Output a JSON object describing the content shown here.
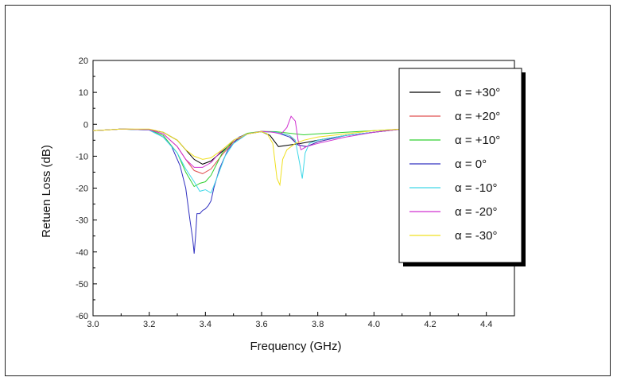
{
  "chart_data": {
    "type": "line",
    "title": "",
    "xlabel": "Frequency (GHz)",
    "ylabel": "Retuen Loss (dB)",
    "xlim": [
      3.0,
      4.5
    ],
    "ylim": [
      -60,
      20
    ],
    "xticks": [
      "3.0",
      "3.2",
      "3.4",
      "3.6",
      "3.8",
      "4.0",
      "4.2",
      "4.4"
    ],
    "yticks": [
      "20",
      "10",
      "0",
      "-10",
      "-20",
      "-30",
      "-40",
      "-50",
      "-60"
    ],
    "grid": false,
    "legend_position": "right",
    "series": [
      {
        "name": "α = +30°",
        "color": "#000000",
        "x": [
          3.0,
          3.1,
          3.2,
          3.25,
          3.3,
          3.33,
          3.36,
          3.39,
          3.42,
          3.46,
          3.5,
          3.55,
          3.6,
          3.63,
          3.66,
          3.7,
          3.74,
          3.8,
          3.9,
          4.0,
          4.1,
          4.14
        ],
        "y": [
          -2,
          -1.5,
          -1.6,
          -2.5,
          -5,
          -8,
          -11,
          -12.5,
          -11.5,
          -8.5,
          -5.5,
          -3,
          -2.3,
          -3.5,
          -7,
          -6.5,
          -6,
          -5,
          -3.5,
          -2.5,
          -1.5,
          -1.2
        ]
      },
      {
        "name": "α = +20°",
        "color": "#e05050",
        "x": [
          3.0,
          3.1,
          3.2,
          3.25,
          3.3,
          3.33,
          3.36,
          3.39,
          3.42,
          3.46,
          3.5,
          3.55,
          3.6,
          3.65,
          3.7,
          3.73,
          3.76,
          3.8,
          3.9,
          4.0,
          4.1,
          4.14
        ],
        "y": [
          -2,
          -1.5,
          -1.7,
          -3,
          -7,
          -11,
          -14.5,
          -15.5,
          -14,
          -9.5,
          -5.5,
          -3,
          -2.2,
          -2.5,
          -3.5,
          -6.5,
          -7,
          -5.5,
          -3.5,
          -2.5,
          -1.5,
          -1.2
        ]
      },
      {
        "name": "α = +10°",
        "color": "#30d030",
        "x": [
          3.0,
          3.1,
          3.2,
          3.25,
          3.3,
          3.33,
          3.36,
          3.38,
          3.4,
          3.42,
          3.46,
          3.5,
          3.55,
          3.6,
          3.65,
          3.7,
          3.75,
          3.8,
          3.9,
          4.0,
          4.1,
          4.14
        ],
        "y": [
          -2,
          -1.5,
          -1.8,
          -3.5,
          -9,
          -15,
          -19.5,
          -18.5,
          -18,
          -16,
          -9,
          -5,
          -2.8,
          -2.2,
          -2.3,
          -2.8,
          -3.3,
          -3,
          -2.5,
          -2,
          -1.5,
          -1.2
        ]
      },
      {
        "name": "α =   0°",
        "color": "#3030c0",
        "x": [
          3.0,
          3.1,
          3.2,
          3.25,
          3.28,
          3.31,
          3.33,
          3.345,
          3.355,
          3.36,
          3.365,
          3.37,
          3.38,
          3.39,
          3.4,
          3.41,
          3.42,
          3.43,
          3.45,
          3.48,
          3.52,
          3.55,
          3.6,
          3.65,
          3.7,
          3.73,
          3.76,
          3.8,
          3.9,
          4.0,
          4.1,
          4.14
        ],
        "y": [
          -2,
          -1.5,
          -1.8,
          -4,
          -7,
          -13,
          -20,
          -30,
          -36,
          -40.5,
          -35,
          -28,
          -28,
          -27,
          -26.5,
          -25.5,
          -24,
          -20,
          -14,
          -8,
          -4,
          -3,
          -2.3,
          -2.5,
          -4,
          -6.5,
          -7,
          -5.5,
          -3.5,
          -2.5,
          -1.5,
          -1.2
        ]
      },
      {
        "name": "α = -10°",
        "color": "#40d8e8",
        "x": [
          3.0,
          3.1,
          3.2,
          3.25,
          3.3,
          3.33,
          3.36,
          3.38,
          3.4,
          3.42,
          3.44,
          3.47,
          3.5,
          3.55,
          3.6,
          3.65,
          3.7,
          3.72,
          3.735,
          3.745,
          3.755,
          3.77,
          3.8,
          3.9,
          4.0,
          4.1,
          4.14
        ],
        "y": [
          -2,
          -1.5,
          -1.8,
          -4,
          -9,
          -14,
          -18,
          -21,
          -20.5,
          -21.5,
          -17,
          -10,
          -6,
          -3,
          -2.3,
          -2.5,
          -3.5,
          -5,
          -12,
          -17,
          -9,
          -6,
          -5,
          -3.5,
          -2.5,
          -1.5,
          -1.2
        ]
      },
      {
        "name": "α = -20°",
        "color": "#d030d0",
        "x": [
          3.0,
          3.1,
          3.2,
          3.25,
          3.3,
          3.33,
          3.36,
          3.39,
          3.42,
          3.46,
          3.5,
          3.55,
          3.6,
          3.64,
          3.67,
          3.69,
          3.705,
          3.72,
          3.73,
          3.74,
          3.76,
          3.8,
          3.9,
          4.0,
          4.1,
          4.14
        ],
        "y": [
          -2,
          -1.5,
          -1.7,
          -3,
          -7,
          -11,
          -13.5,
          -13.5,
          -12,
          -8,
          -5,
          -3,
          -2.2,
          -2.5,
          -3,
          -1,
          2.5,
          1,
          -5,
          -8,
          -7,
          -6,
          -4,
          -2.5,
          -1.5,
          -1.2
        ]
      },
      {
        "name": "α = -30°",
        "color": "#f0e020",
        "x": [
          3.0,
          3.1,
          3.2,
          3.25,
          3.3,
          3.33,
          3.36,
          3.39,
          3.42,
          3.46,
          3.5,
          3.55,
          3.6,
          3.62,
          3.64,
          3.655,
          3.665,
          3.675,
          3.69,
          3.72,
          3.75,
          3.8,
          3.9,
          4.0,
          4.1,
          4.14
        ],
        "y": [
          -2,
          -1.5,
          -1.5,
          -2.5,
          -5,
          -8,
          -10,
          -11,
          -10.5,
          -8,
          -5,
          -3,
          -2.3,
          -3,
          -6,
          -17,
          -19,
          -11,
          -8,
          -6,
          -5,
          -4,
          -3,
          -2,
          -1.5,
          -1.2
        ]
      }
    ]
  }
}
